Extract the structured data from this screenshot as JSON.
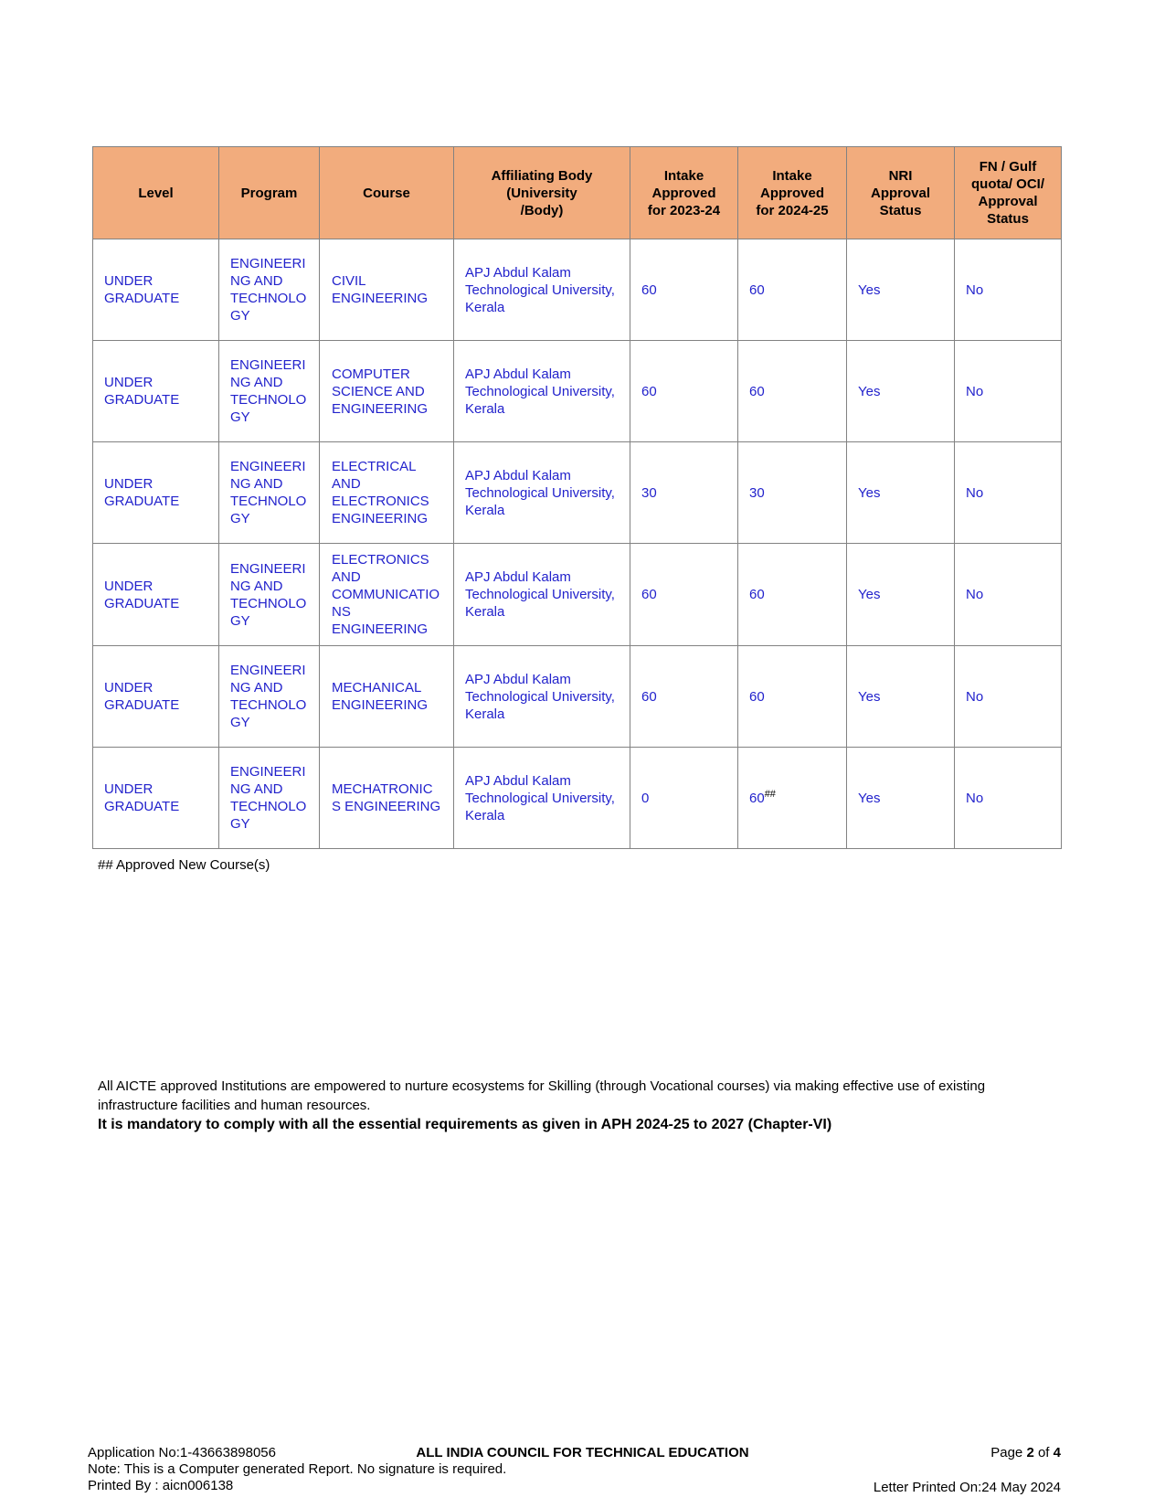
{
  "colors": {
    "header_bg": "#F2AC7D",
    "data_text": "#2222CC",
    "border": "#828282"
  },
  "table": {
    "headers": [
      {
        "key": "level",
        "label": "Level"
      },
      {
        "key": "program",
        "label": "Program"
      },
      {
        "key": "course",
        "label": "Course"
      },
      {
        "key": "affiliating_body",
        "label": "Affiliating Body\n(University\n/Body)"
      },
      {
        "key": "intake_2023_24",
        "label": "Intake\nApproved\nfor 2023-24"
      },
      {
        "key": "intake_2024_25",
        "label": "Intake\nApproved\nfor 2024-25"
      },
      {
        "key": "nri_approval",
        "label": "NRI\nApproval\nStatus"
      },
      {
        "key": "fn_gulf_approval",
        "label": "FN / Gulf\nquota/ OCI/\nApproval\nStatus"
      }
    ],
    "rows": [
      {
        "level": "UNDER GRADUATE",
        "program": "ENGINEERING AND TECHNOLOGY",
        "course": "CIVIL ENGINEERING",
        "affiliating_body": "APJ Abdul Kalam Technological University, Kerala",
        "intake_2023_24": "60",
        "intake_2024_25": "60",
        "intake_2024_25_sup": "",
        "nri_approval": "Yes",
        "fn_gulf_approval": "No"
      },
      {
        "level": "UNDER GRADUATE",
        "program": "ENGINEERING AND TECHNOLOGY",
        "course": "COMPUTER SCIENCE AND ENGINEERING",
        "affiliating_body": "APJ Abdul Kalam Technological University, Kerala",
        "intake_2023_24": "60",
        "intake_2024_25": "60",
        "intake_2024_25_sup": "",
        "nri_approval": "Yes",
        "fn_gulf_approval": "No"
      },
      {
        "level": "UNDER GRADUATE",
        "program": "ENGINEERING AND TECHNOLOGY",
        "course": "ELECTRICAL AND ELECTRONICS ENGINEERING",
        "affiliating_body": "APJ Abdul Kalam Technological University, Kerala",
        "intake_2023_24": "30",
        "intake_2024_25": "30",
        "intake_2024_25_sup": "",
        "nri_approval": "Yes",
        "fn_gulf_approval": "No"
      },
      {
        "level": "UNDER GRADUATE",
        "program": "ENGINEERING AND TECHNOLOGY",
        "course": "ELECTRONICS AND COMMUNICATIONS ENGINEERING",
        "affiliating_body": "APJ Abdul Kalam Technological University, Kerala",
        "intake_2023_24": "60",
        "intake_2024_25": "60",
        "intake_2024_25_sup": "",
        "nri_approval": "Yes",
        "fn_gulf_approval": "No"
      },
      {
        "level": "UNDER GRADUATE",
        "program": "ENGINEERING AND TECHNOLOGY",
        "course": "MECHANICAL ENGINEERING",
        "affiliating_body": "APJ Abdul Kalam Technological University, Kerala",
        "intake_2023_24": "60",
        "intake_2024_25": "60",
        "intake_2024_25_sup": "",
        "nri_approval": "Yes",
        "fn_gulf_approval": "No"
      },
      {
        "level": "UNDER GRADUATE",
        "program": "ENGINEERING AND TECHNOLOGY",
        "course": "MECHATRONICS ENGINEERING",
        "affiliating_body": "APJ Abdul Kalam Technological University, Kerala",
        "intake_2023_24": "0",
        "intake_2024_25": "60",
        "intake_2024_25_sup": "##",
        "nri_approval": "Yes",
        "fn_gulf_approval": "No"
      }
    ]
  },
  "footnote": "## Approved New Course(s)",
  "notes": {
    "skilling": "All AICTE approved Institutions are empowered to nurture ecosystems for Skilling (through Vocational courses) via making effective use of existing infrastructure facilities and human resources.",
    "mandatory": "It is mandatory to comply with all the essential requirements as given in APH 2024-25 to 2027 (Chapter-VI)"
  },
  "footer": {
    "application_no": "Application No:1-43663898056",
    "organization": "ALL INDIA COUNCIL FOR TECHNICAL EDUCATION",
    "page_label": "Page",
    "page_current": "2",
    "page_of_label": "of",
    "page_total": "4",
    "note": "Note: This is a Computer generated Report. No signature is required.",
    "printed_by": "Printed By : aicn006138",
    "letter_printed_on": "Letter Printed On:24 May 2024"
  }
}
